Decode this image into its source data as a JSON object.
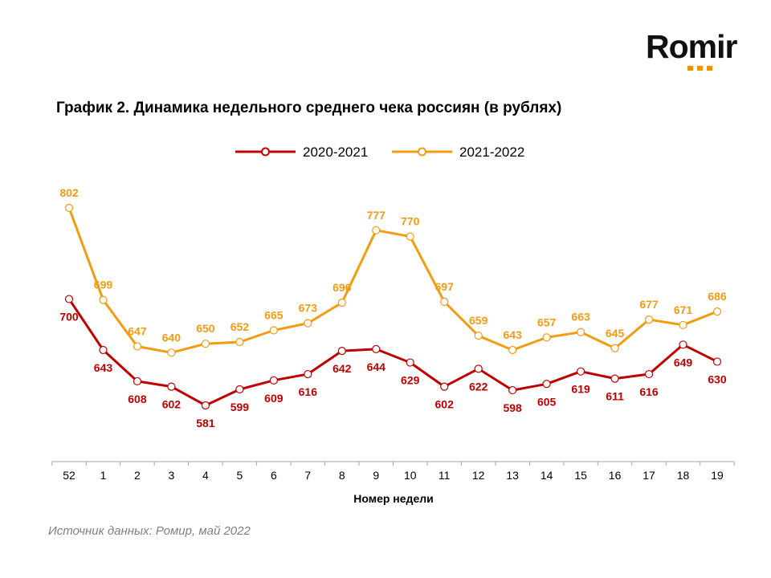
{
  "logo": {
    "text": "Romir",
    "accent": "#f39200"
  },
  "chart_data": {
    "type": "line",
    "title": "График 2. Динамика недельного среднего чека россиян (в рублях)",
    "xlabel": "Номер недели",
    "ylabel": "",
    "categories": [
      "52",
      "1",
      "2",
      "3",
      "4",
      "5",
      "6",
      "7",
      "8",
      "9",
      "10",
      "11",
      "12",
      "13",
      "14",
      "15",
      "16",
      "17",
      "18",
      "19"
    ],
    "ylim": [
      581,
      802
    ],
    "grid": false,
    "legend_position": "top",
    "series": [
      {
        "name": "2020-2021",
        "color": "#c00000",
        "values": [
          700,
          643,
          608,
          602,
          581,
          599,
          609,
          616,
          642,
          644,
          629,
          602,
          622,
          598,
          605,
          619,
          611,
          616,
          649,
          630
        ],
        "label_position": "below"
      },
      {
        "name": "2021-2022",
        "color": "#f39c12",
        "values": [
          802,
          699,
          647,
          640,
          650,
          652,
          665,
          673,
          696,
          777,
          770,
          697,
          659,
          643,
          657,
          663,
          645,
          677,
          671,
          686
        ],
        "label_position": "above"
      }
    ]
  },
  "source": "Источник данных: Ромир, май 2022"
}
